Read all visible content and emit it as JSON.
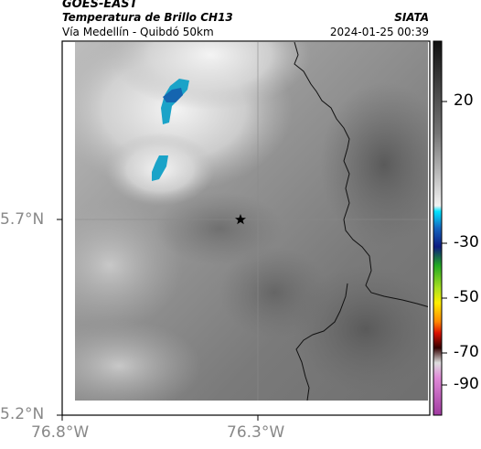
{
  "header": {
    "title": "GOES-EAST",
    "product": "Temperatura de Brillo CH13",
    "subtitle": "Vía Medellín - Quibdó 50km",
    "organization": "SIATA",
    "timestamp": "2024-01-25 00:39"
  },
  "axes": {
    "lat_labels": [
      "5.7°N",
      "5.2°N"
    ],
    "lon_labels": [
      "76.8°W",
      "76.3°W"
    ]
  },
  "colorbar": {
    "tick_labels": [
      "20",
      "-30",
      "-50",
      "-70",
      "-90"
    ]
  },
  "map": {
    "marker": "star-icon",
    "colors": {
      "cold_cloud": "#1aa3c8",
      "deep_cloud": "#1565b0",
      "boundary": "#111111",
      "grid": "#8a8a8a"
    }
  }
}
